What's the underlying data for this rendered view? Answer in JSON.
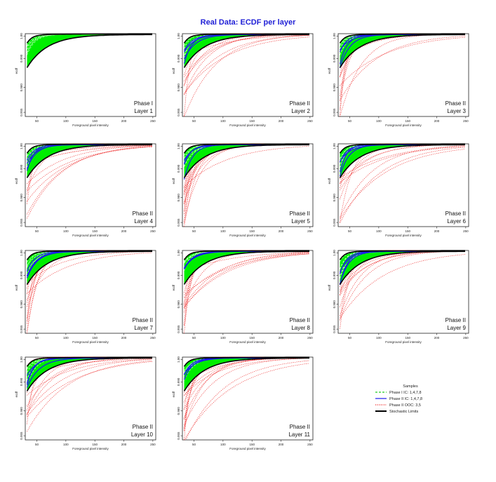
{
  "figure_title": "Real Data: ECDF per layer",
  "colors": {
    "title": "#1f1fd6",
    "phase1_ic": "#22cc22",
    "phase1_fill": "#00ee00",
    "phase2_ic": "#1a1aee",
    "phase2_ooc": "#ee3333",
    "limits": "#000000"
  },
  "chart_data": [
    {
      "type": "line",
      "panel": 1,
      "phase_label": "Phase I",
      "layer_label": "Layer 1",
      "xlabel": "Foreground pixel intensity",
      "ylabel": "ecdf",
      "xlim": [
        30,
        255
      ],
      "ylim": [
        0.955,
        1.0
      ],
      "xticks": [
        50,
        100,
        150,
        200,
        250
      ],
      "yticks": [
        "0.955",
        "0.960",
        "0.990",
        "1.00"
      ],
      "ooc_curves": 0,
      "show_phase2_ic": false
    },
    {
      "type": "line",
      "panel": 2,
      "phase_label": "Phase II",
      "layer_label": "Layer 2",
      "xlabel": "Foreground pixel intensity",
      "ylabel": "ecdf",
      "xlim": [
        30,
        255
      ],
      "ylim": [
        0.955,
        1.0
      ],
      "xticks": [
        50,
        100,
        150,
        200,
        250
      ],
      "yticks": [
        "0.955",
        "0.960",
        "0.990",
        "1.00"
      ],
      "ooc_curves": 14,
      "show_phase2_ic": true
    },
    {
      "type": "line",
      "panel": 3,
      "phase_label": "Phase II",
      "layer_label": "Layer 3",
      "xlabel": "Foreground pixel intensity",
      "ylabel": "ecdf",
      "xlim": [
        30,
        255
      ],
      "ylim": [
        0.955,
        1.0
      ],
      "xticks": [
        50,
        100,
        150,
        200,
        250
      ],
      "yticks": [
        "0.955",
        "0.960",
        "0.990",
        "1.00"
      ],
      "ooc_curves": 14,
      "show_phase2_ic": true
    },
    {
      "type": "line",
      "panel": 4,
      "phase_label": "Phase II",
      "layer_label": "Layer 4",
      "xlabel": "Foreground pixel intensity",
      "ylabel": "ecdf",
      "xlim": [
        30,
        255
      ],
      "ylim": [
        0.955,
        1.0
      ],
      "xticks": [
        50,
        100,
        150,
        200,
        250
      ],
      "yticks": [
        "0.955",
        "0.960",
        "0.990",
        "1.00"
      ],
      "ooc_curves": 16,
      "show_phase2_ic": true
    },
    {
      "type": "line",
      "panel": 5,
      "phase_label": "Phase II",
      "layer_label": "Layer 5",
      "xlabel": "Foreground pixel intensity",
      "ylabel": "ecdf",
      "xlim": [
        30,
        255
      ],
      "ylim": [
        0.955,
        1.0
      ],
      "xticks": [
        50,
        100,
        150,
        200,
        250
      ],
      "yticks": [
        "0.955",
        "0.960",
        "0.990",
        "1.00"
      ],
      "ooc_curves": 16,
      "show_phase2_ic": true
    },
    {
      "type": "line",
      "panel": 6,
      "phase_label": "Phase II",
      "layer_label": "Layer 6",
      "xlabel": "Foreground pixel intensity",
      "ylabel": "ecdf",
      "xlim": [
        30,
        255
      ],
      "ylim": [
        0.955,
        1.0
      ],
      "xticks": [
        50,
        100,
        150,
        200,
        250
      ],
      "yticks": [
        "0.955",
        "0.960",
        "0.990",
        "1.00"
      ],
      "ooc_curves": 16,
      "show_phase2_ic": true
    },
    {
      "type": "line",
      "panel": 7,
      "phase_label": "Phase II",
      "layer_label": "Layer 7",
      "xlabel": "Foreground pixel intensity",
      "ylabel": "ecdf",
      "xlim": [
        30,
        255
      ],
      "ylim": [
        0.955,
        1.0
      ],
      "xticks": [
        50,
        100,
        150,
        200,
        250
      ],
      "yticks": [
        "0.955",
        "0.960",
        "0.990",
        "1.00"
      ],
      "ooc_curves": 18,
      "show_phase2_ic": true
    },
    {
      "type": "line",
      "panel": 8,
      "phase_label": "Phase II",
      "layer_label": "Layer 8",
      "xlabel": "Foreground pixel intensity",
      "ylabel": "ecdf",
      "xlim": [
        30,
        255
      ],
      "ylim": [
        0.955,
        1.0
      ],
      "xticks": [
        50,
        100,
        150,
        200,
        250
      ],
      "yticks": [
        "0.955",
        "0.960",
        "0.990",
        "1.00"
      ],
      "ooc_curves": 18,
      "show_phase2_ic": true
    },
    {
      "type": "line",
      "panel": 9,
      "phase_label": "Phase II",
      "layer_label": "Layer 9",
      "xlabel": "Foreground pixel intensity",
      "ylabel": "ecdf",
      "xlim": [
        30,
        255
      ],
      "ylim": [
        0.955,
        1.0
      ],
      "xticks": [
        50,
        100,
        150,
        200,
        250
      ],
      "yticks": [
        "0.955",
        "0.960",
        "0.990",
        "1.00"
      ],
      "ooc_curves": 18,
      "show_phase2_ic": true
    },
    {
      "type": "line",
      "panel": 10,
      "phase_label": "Phase II",
      "layer_label": "Layer 10",
      "xlabel": "Foreground pixel intensity",
      "ylabel": "ecdf",
      "xlim": [
        30,
        255
      ],
      "ylim": [
        0.955,
        1.0
      ],
      "xticks": [
        50,
        100,
        150,
        200,
        250
      ],
      "yticks": [
        "0.955",
        "0.960",
        "0.990",
        "1.00"
      ],
      "ooc_curves": 20,
      "show_phase2_ic": true
    },
    {
      "type": "line",
      "panel": 11,
      "phase_label": "Phase II",
      "layer_label": "Layer 11",
      "xlabel": "Foreground pixel intensity",
      "ylabel": "ecdf",
      "xlim": [
        30,
        255
      ],
      "ylim": [
        0.955,
        1.0
      ],
      "xticks": [
        50,
        100,
        150,
        200,
        250
      ],
      "yticks": [
        "0.955",
        "0.960",
        "0.990",
        "1.00"
      ],
      "ooc_curves": 20,
      "show_phase2_ic": true
    }
  ],
  "legend": {
    "title": "Samples",
    "entries": [
      {
        "label": "Phase I IC: 1,4,7,8",
        "style": "dashed",
        "color": "#22cc22"
      },
      {
        "label": "Phase II IC: 1,4,7,8",
        "style": "solid",
        "color": "#1a1aee"
      },
      {
        "label": "Phase II OOC: 3,5",
        "style": "dotted",
        "color": "#ee3333"
      },
      {
        "label": "Stochastic Limits",
        "style": "solid-thick",
        "color": "#000000"
      }
    ]
  }
}
